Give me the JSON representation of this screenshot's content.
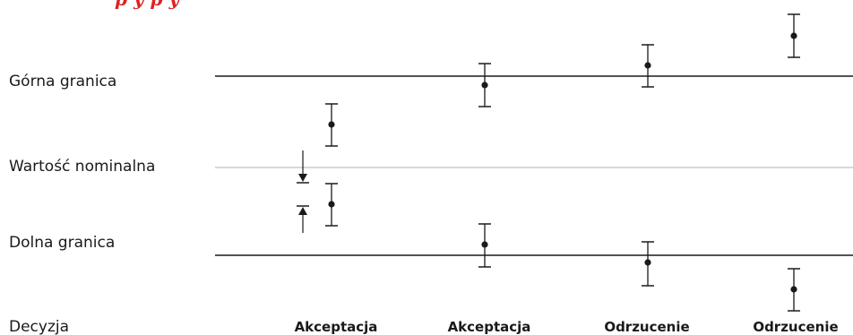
{
  "title_fragment": "p     y          p       y",
  "labels": {
    "upper": "Górna granica",
    "nominal": "Wartość nominalna",
    "lower": "Dolna granica",
    "decision": "Decyzja"
  },
  "colors": {
    "title": "#e02020",
    "lines": "#1a1a1a",
    "nominal_line": "#b0b0b0"
  },
  "decisions": [
    "Akceptacja",
    "Akceptacja",
    "Odrzucenie",
    "Odrzucenie"
  ],
  "measurements": [
    {
      "name": "case-1-upper"
    },
    {
      "name": "case-1-lower"
    },
    {
      "name": "case-2-upper"
    },
    {
      "name": "case-2-lower"
    },
    {
      "name": "case-3-upper"
    },
    {
      "name": "case-3-lower"
    },
    {
      "name": "case-4-upper"
    },
    {
      "name": "case-4-lower"
    }
  ]
}
